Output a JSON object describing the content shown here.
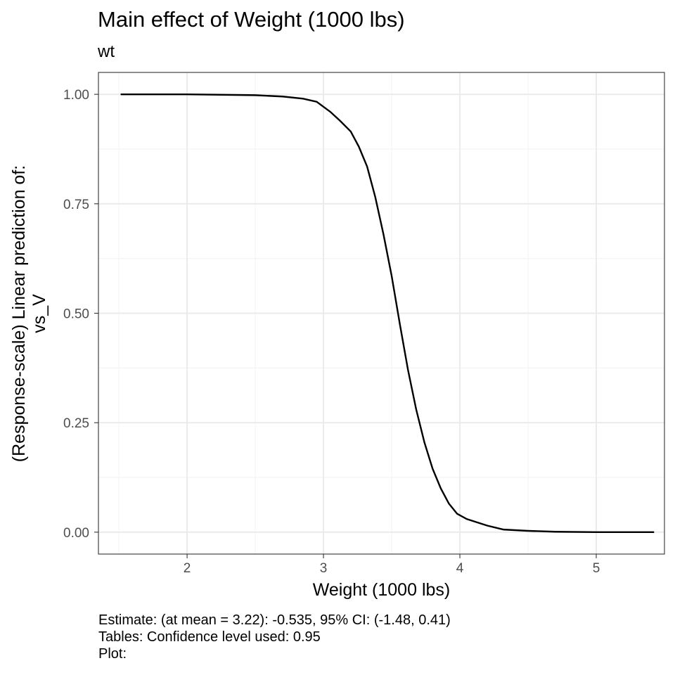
{
  "chart_data": {
    "type": "line",
    "title": "Main effect of Weight (1000 lbs)",
    "subtitle": "wt",
    "xlabel": "Weight (1000 lbs)",
    "ylabel_lines": [
      "(Response-scale) Linear prediction of:",
      "vs_V"
    ],
    "xlim": [
      1.35,
      5.5
    ],
    "ylim": [
      -0.05,
      1.05
    ],
    "x_ticks": [
      2,
      3,
      4,
      5
    ],
    "y_ticks": [
      0.0,
      0.25,
      0.5,
      0.75,
      1.0
    ],
    "y_tick_labels": [
      "0.00",
      "0.25",
      "0.50",
      "0.75",
      "1.00"
    ],
    "grid": true,
    "series": [
      {
        "x": [
          1.513,
          2.0,
          2.5,
          2.7,
          2.85,
          2.95,
          3.05,
          3.12,
          3.2,
          3.26,
          3.32,
          3.38,
          3.44,
          3.5,
          3.56,
          3.62,
          3.68,
          3.74,
          3.8,
          3.86,
          3.92,
          3.98,
          4.05,
          4.2,
          4.32,
          4.5,
          4.7,
          5.0,
          5.424
        ],
        "y": [
          1.0,
          1.0,
          0.998,
          0.995,
          0.99,
          0.983,
          0.96,
          0.94,
          0.915,
          0.88,
          0.835,
          0.765,
          0.68,
          0.585,
          0.475,
          0.37,
          0.28,
          0.205,
          0.145,
          0.1,
          0.065,
          0.042,
          0.03,
          0.015,
          0.006,
          0.003,
          0.001,
          0.0,
          0.0
        ]
      }
    ]
  },
  "caption": {
    "line1": "Estimate: (at mean = 3.22): -0.535, 95% CI: (-1.48, 0.41)",
    "line2": "Tables: Confidence level used: 0.95",
    "line3": "Plot:"
  },
  "colors": {
    "line": "#000000",
    "grid_major": "#ebebeb",
    "grid_minor": "#f4f4f4",
    "panel_border": "#333333",
    "tick_label": "#4d4d4d"
  }
}
